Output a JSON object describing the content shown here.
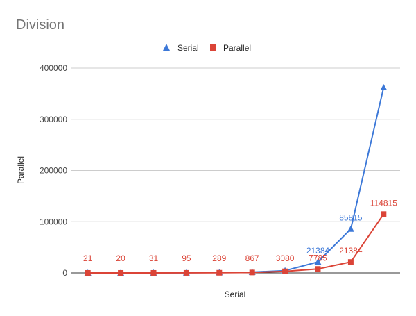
{
  "chart_data": {
    "type": "line",
    "title": "Division",
    "xlabel": "Serial",
    "ylabel": "Parallel",
    "ylim": [
      0,
      400000
    ],
    "yticks": [
      0,
      100000,
      200000,
      300000,
      400000
    ],
    "ytick_labels": [
      "0",
      "100000",
      "200000",
      "300000",
      "400000"
    ],
    "grid": true,
    "legend": "top",
    "colors": {
      "Serial": "#3c78d8",
      "Parallel": "#db4437"
    },
    "series": [
      {
        "name": "Serial",
        "marker": "triangle",
        "values": [
          20,
          31,
          95,
          289,
          867,
          1500,
          4500,
          21384,
          85815,
          362000
        ],
        "labels": [
          "",
          "",
          "",
          "",
          "",
          "",
          "",
          "21384",
          "85815",
          ""
        ]
      },
      {
        "name": "Parallel",
        "marker": "square",
        "values": [
          21,
          20,
          31,
          95,
          289,
          867,
          3080,
          7785,
          21384,
          114815
        ],
        "labels": [
          "21",
          "20",
          "31",
          "95",
          "289",
          "867",
          "3080",
          "7785",
          "21384",
          "114815"
        ]
      }
    ]
  }
}
